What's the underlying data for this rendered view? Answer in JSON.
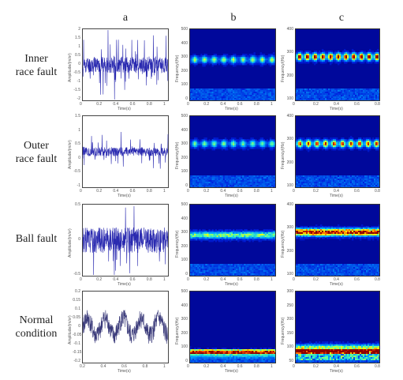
{
  "columns": [
    "a",
    "b",
    "c"
  ],
  "rows": [
    {
      "label_line1": "Inner",
      "label_line2": "race fault",
      "time": {
        "ylabel": "Amplitude/(m/s²)",
        "yticks": [
          "2",
          "1.5",
          "1",
          "0.5",
          "0",
          "-0.5",
          "-1",
          "-1.5",
          "-2"
        ],
        "xticks": [
          "0",
          "0.2",
          "0.4",
          "0.6",
          "0.8",
          "1"
        ],
        "xlabel": "Time(s)",
        "amp": 0.45,
        "spikes": 0.9,
        "seed": 11,
        "periodic": 8
      },
      "spec_b": {
        "ylabel": "Frequency/(Hz)",
        "yticks": [
          "500",
          "400",
          "300",
          "200",
          "100",
          "0"
        ],
        "xticks": [
          "0",
          "0.2",
          "0.4",
          "0.6",
          "0.8",
          "1"
        ],
        "xlabel": "Time(s)",
        "band": 0.58,
        "intensity": 0.55,
        "seed": 3,
        "pulses": 9
      },
      "spec_c": {
        "ylabel": "Frequency/(Hz)",
        "yticks": [
          "400",
          "300",
          "200",
          "100"
        ],
        "xticks": [
          "0",
          "0.2",
          "0.4",
          "0.6",
          "0.8"
        ],
        "xlabel": "Time(s)",
        "band": 0.62,
        "intensity": 1.0,
        "seed": 4,
        "pulses": 11
      }
    },
    {
      "label_line1": "Outer",
      "label_line2": "race fault",
      "time": {
        "ylabel": "Amplitude/(m/s²)",
        "yticks": [
          "1.5",
          "1",
          "0.5",
          "0",
          "-0.5",
          "-1"
        ],
        "xticks": [
          "0",
          "0.2",
          "0.4",
          "0.6",
          "0.8",
          "1"
        ],
        "xlabel": "Time(s)",
        "amp": 0.25,
        "spikes": 0.8,
        "seed": 21,
        "periodic": 9
      },
      "spec_b": {
        "ylabel": "Frequency/(Hz)",
        "yticks": [
          "500",
          "400",
          "300",
          "200",
          "100",
          "0"
        ],
        "xticks": [
          "0",
          "0.2",
          "0.4",
          "0.6",
          "0.8",
          "1"
        ],
        "xlabel": "Time(s)",
        "band": 0.62,
        "intensity": 0.5,
        "seed": 5,
        "pulses": 9
      },
      "spec_c": {
        "ylabel": "Frequency/(Hz)",
        "yticks": [
          "400",
          "300",
          "200",
          "100"
        ],
        "xticks": [
          "0",
          "0.2",
          "0.4",
          "0.6",
          "0.8"
        ],
        "xlabel": "Time(s)",
        "band": 0.62,
        "intensity": 0.85,
        "seed": 6,
        "pulses": 10
      }
    },
    {
      "label_line1": "Ball fault",
      "label_line2": "",
      "time": {
        "ylabel": "Amplitude/(m/s²)",
        "yticks": [
          "0.5",
          "0",
          "-0.5"
        ],
        "xticks": [
          "0",
          "0.2",
          "0.4",
          "0.6",
          "0.8",
          "1"
        ],
        "xlabel": "Time(s)",
        "amp": 0.7,
        "spikes": 0.3,
        "seed": 31,
        "periodic": 0
      },
      "spec_b": {
        "ylabel": "Frequency/(Hz)",
        "yticks": [
          "500",
          "400",
          "300",
          "200",
          "100",
          "0"
        ],
        "xticks": [
          "0",
          "0.2",
          "0.4",
          "0.6",
          "0.8",
          "1"
        ],
        "xlabel": "Time(s)",
        "band": 0.58,
        "intensity": 0.55,
        "seed": 7,
        "pulses": 0
      },
      "spec_c": {
        "ylabel": "Frequency/(Hz)",
        "yticks": [
          "400",
          "300",
          "200",
          "100"
        ],
        "xticks": [
          "0",
          "0.2",
          "0.4",
          "0.6",
          "0.8"
        ],
        "xlabel": "Time(s)",
        "band": 0.62,
        "intensity": 1.0,
        "seed": 8,
        "pulses": 0
      }
    },
    {
      "label_line1": "Normal",
      "label_line2": "condition",
      "time": {
        "ylabel": "Amplitude/(m/s²)",
        "yticks": [
          "0.2",
          "0.15",
          "0.1",
          "0.05",
          "0",
          "-0.05",
          "-0.1",
          "-0.15",
          "-0.2"
        ],
        "xticks": [
          "0.2",
          "0.4",
          "0.6",
          "0.8",
          "1"
        ],
        "xlabel": "Time(s)",
        "amp": 0.55,
        "spikes": 0.0,
        "seed": 41,
        "periodic": 0
      },
      "spec_b": {
        "ylabel": "Frequency/(Hz)",
        "yticks": [
          "500",
          "400",
          "300",
          "200",
          "100",
          "0"
        ],
        "xticks": [
          "0",
          "0.2",
          "0.4",
          "0.6",
          "0.8",
          "1"
        ],
        "xlabel": "Time(s)",
        "band": 0.15,
        "intensity": 0.35,
        "seed": 9,
        "pulses": 0
      },
      "spec_c": {
        "ylabel": "Frequency/(Hz)",
        "yticks": [
          "300",
          "250",
          "200",
          "150",
          "100",
          "50"
        ],
        "xticks": [
          "0",
          "0.2",
          "0.4",
          "0.6",
          "0.8"
        ],
        "xlabel": "Time(s)",
        "band": 0.22,
        "intensity": 0.65,
        "seed": 10,
        "pulses": 0
      }
    }
  ]
}
